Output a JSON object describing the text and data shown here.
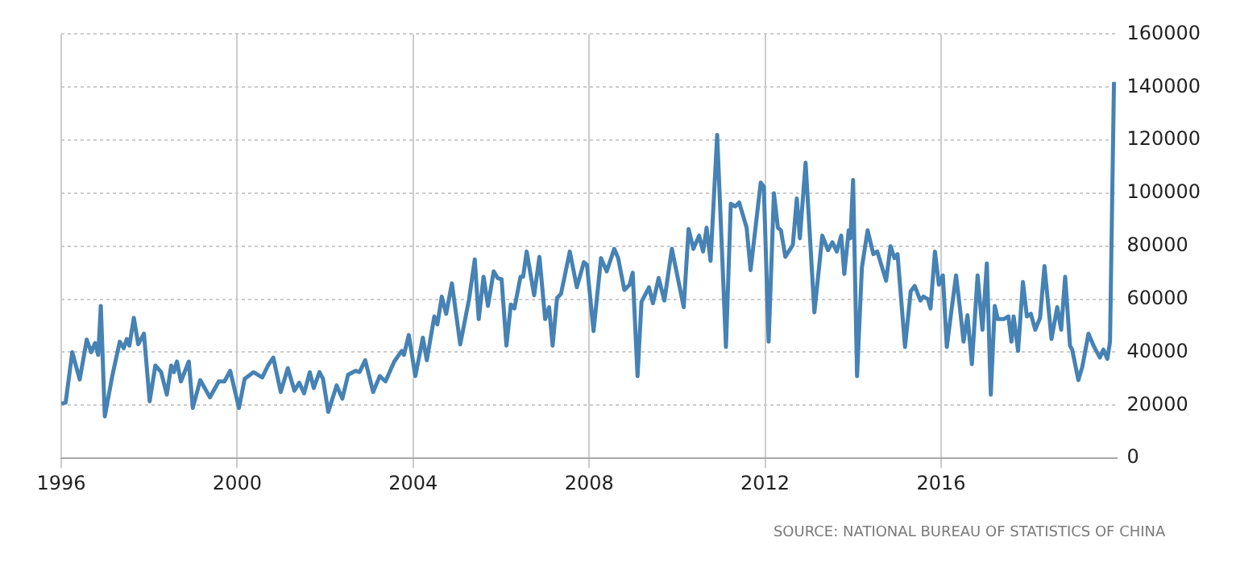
{
  "chart_data": {
    "type": "line",
    "annotations": [
      "SOURCE: NATIONAL BUREAU OF STATISTICS OF CHINA"
    ],
    "xlim": [
      1996,
      2020
    ],
    "xticks": [
      1996,
      2000,
      2004,
      2008,
      2012,
      2016
    ],
    "ylim": [
      0,
      160000
    ],
    "yticks": [
      0,
      20000,
      40000,
      60000,
      80000,
      100000,
      120000,
      140000,
      160000
    ],
    "grid": true,
    "legend": false,
    "marker": "none",
    "line_style": "solid",
    "series": [
      {
        "color": "#4682b4",
        "x": [
          1996.0,
          1996.1,
          1996.25,
          1996.42,
          1996.58,
          1996.68,
          1996.77,
          1996.84,
          1996.9,
          1996.99,
          1997.16,
          1997.33,
          1997.42,
          1997.49,
          1997.55,
          1997.65,
          1997.75,
          1997.88,
          1998.01,
          1998.14,
          1998.27,
          1998.4,
          1998.5,
          1998.56,
          1998.63,
          1998.72,
          1998.9,
          1998.99,
          1999.16,
          1999.38,
          1999.58,
          1999.71,
          1999.84,
          2000.04,
          2000.17,
          2000.37,
          2000.57,
          2000.7,
          2000.82,
          2000.99,
          2001.15,
          2001.3,
          2001.41,
          2001.52,
          2001.65,
          2001.74,
          2001.87,
          2001.95,
          2002.07,
          2002.26,
          2002.39,
          2002.52,
          2002.69,
          2002.78,
          2002.91,
          2003.09,
          2003.24,
          2003.37,
          2003.57,
          2003.74,
          2003.79,
          2003.9,
          2004.05,
          2004.22,
          2004.31,
          2004.48,
          2004.55,
          2004.65,
          2004.75,
          2004.88,
          2005.07,
          2005.27,
          2005.4,
          2005.49,
          2005.6,
          2005.7,
          2005.83,
          2005.92,
          2006.01,
          2006.12,
          2006.22,
          2006.3,
          2006.44,
          2006.5,
          2006.58,
          2006.75,
          2006.87,
          2007.0,
          2007.09,
          2007.17,
          2007.27,
          2007.36,
          2007.56,
          2007.72,
          2007.88,
          2007.95,
          2008.1,
          2008.27,
          2008.4,
          2008.57,
          2008.66,
          2008.8,
          2008.92,
          2008.99,
          2009.1,
          2009.19,
          2009.36,
          2009.45,
          2009.58,
          2009.71,
          2009.88,
          2010.15,
          2010.26,
          2010.37,
          2010.5,
          2010.59,
          2010.67,
          2010.76,
          2010.91,
          2011.11,
          2011.22,
          2011.32,
          2011.41,
          2011.58,
          2011.67,
          2011.9,
          2011.97,
          2012.08,
          2012.2,
          2012.29,
          2012.36,
          2012.46,
          2012.63,
          2012.72,
          2012.79,
          2012.92,
          2013.12,
          2013.3,
          2013.43,
          2013.53,
          2013.63,
          2013.73,
          2013.8,
          2013.9,
          2013.94,
          2014.0,
          2014.09,
          2014.2,
          2014.33,
          2014.46,
          2014.55,
          2014.75,
          2014.85,
          2014.94,
          2015.01,
          2015.18,
          2015.31,
          2015.4,
          2015.53,
          2015.6,
          2015.7,
          2015.76,
          2015.86,
          2015.95,
          2016.04,
          2016.13,
          2016.23,
          2016.34,
          2016.43,
          2016.51,
          2016.6,
          2016.7,
          2016.83,
          2016.94,
          2017.04,
          2017.13,
          2017.22,
          2017.29,
          2017.42,
          2017.53,
          2017.6,
          2017.65,
          2017.75,
          2017.86,
          2017.95,
          2018.04,
          2018.14,
          2018.25,
          2018.35,
          2018.51,
          2018.64,
          2018.73,
          2018.82,
          2018.93,
          2018.98,
          2019.12,
          2019.21,
          2019.35,
          2019.48,
          2019.61,
          2019.69,
          2019.78,
          2019.84,
          2019.93
        ],
        "values": [
          20600,
          21000,
          40000,
          29700,
          44800,
          40000,
          43500,
          39000,
          57500,
          15800,
          31000,
          44000,
          41500,
          45000,
          42500,
          53000,
          43000,
          47000,
          21500,
          35000,
          32500,
          24000,
          35000,
          32500,
          36500,
          29000,
          36500,
          19000,
          29500,
          23000,
          29000,
          29000,
          33000,
          19000,
          30000,
          32500,
          30500,
          35000,
          38000,
          25000,
          34000,
          25500,
          28500,
          24500,
          32500,
          26500,
          32500,
          30000,
          17500,
          27500,
          22500,
          31500,
          33000,
          32500,
          37000,
          25000,
          31000,
          29000,
          36500,
          40500,
          39000,
          46500,
          31000,
          45500,
          37000,
          53500,
          50500,
          61000,
          54500,
          66000,
          43000,
          60000,
          75000,
          52500,
          68500,
          57500,
          70500,
          68000,
          67500,
          42500,
          58000,
          56500,
          68500,
          68500,
          78000,
          61500,
          76000,
          52500,
          57000,
          42500,
          60500,
          62000,
          78000,
          64500,
          74000,
          73000,
          48000,
          75500,
          70500,
          79000,
          75500,
          63500,
          65500,
          70000,
          31000,
          59000,
          64500,
          58500,
          68000,
          59500,
          79000,
          57000,
          86500,
          79000,
          84000,
          78000,
          87000,
          74500,
          122000,
          42000,
          96000,
          95000,
          96500,
          87000,
          71000,
          104000,
          102500,
          44000,
          100000,
          87000,
          86000,
          76000,
          80500,
          98000,
          83000,
          111500,
          55000,
          84000,
          78500,
          81500,
          78000,
          84000,
          69500,
          86000,
          83000,
          105000,
          31000,
          72000,
          86000,
          77000,
          78000,
          67000,
          80000,
          75500,
          77000,
          42000,
          63000,
          65000,
          59500,
          61000,
          60000,
          56500,
          78000,
          65500,
          69000,
          42000,
          55000,
          69000,
          56500,
          44000,
          54000,
          35500,
          69000,
          48500,
          73500,
          24000,
          57500,
          52500,
          52500,
          53500,
          44000,
          53500,
          40500,
          66500,
          53500,
          54500,
          48500,
          53000,
          72500,
          45000,
          57000,
          48500,
          68500,
          42500,
          41000,
          29500,
          34500,
          47000,
          42000,
          38000,
          41000,
          37500,
          44000,
          142000
        ]
      }
    ]
  }
}
